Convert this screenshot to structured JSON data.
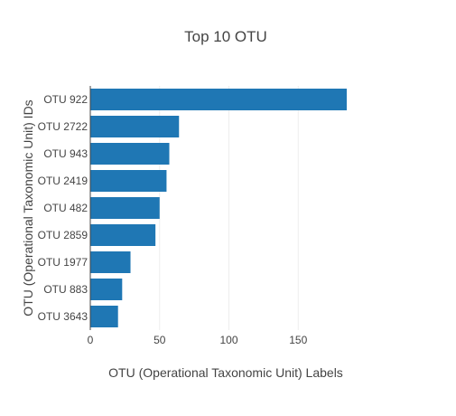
{
  "chart_data": {
    "type": "bar",
    "orientation": "horizontal",
    "title": "Top 10 OTU",
    "xlabel": "OTU (Operational Taxonomic Unit) Labels",
    "ylabel": "OTU (Operational Taxonomic Unit) IDs",
    "categories": [
      "OTU 922",
      "OTU 2722",
      "OTU 943",
      "OTU 2419",
      "OTU 482",
      "OTU 2859",
      "OTU 1977",
      "OTU 883",
      "OTU 3643"
    ],
    "values": [
      185,
      64,
      57,
      55,
      50,
      47,
      29,
      23,
      20
    ],
    "xlim": [
      0,
      185
    ],
    "xticks": [
      0,
      50,
      100,
      150
    ],
    "grid": true,
    "bar_color": "#1f77b4"
  }
}
